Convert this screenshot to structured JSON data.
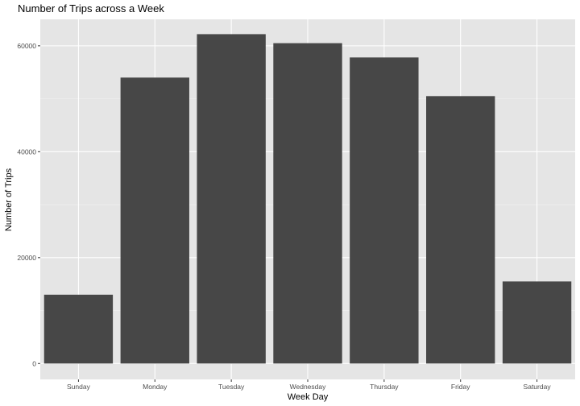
{
  "chart_data": {
    "type": "bar",
    "title": "Number of Trips across a Week",
    "xlabel": "Week Day",
    "ylabel": "Number of Trips",
    "categories": [
      "Sunday",
      "Monday",
      "Tuesday",
      "Wednesday",
      "Thursday",
      "Friday",
      "Saturday"
    ],
    "values": [
      13000,
      54000,
      62200,
      60500,
      57800,
      50500,
      15500
    ],
    "ylim": [
      -3000,
      65000
    ],
    "yticks": [
      0,
      20000,
      40000,
      60000
    ],
    "ytick_labels": [
      "0",
      "20000",
      "40000",
      "60000"
    ],
    "grid": true,
    "legend": "none",
    "colors": {
      "bar": "#474747",
      "panel": "#e5e5e5",
      "grid": "#ffffff"
    }
  }
}
